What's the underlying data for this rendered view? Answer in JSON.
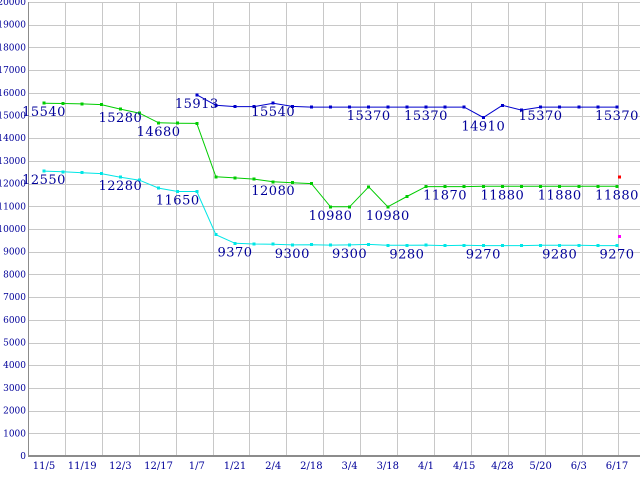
{
  "chart_data": {
    "type": "line",
    "title": "",
    "xlabel": "",
    "ylabel": "",
    "grid": true,
    "legend": "none",
    "y_axis": {
      "min": 0,
      "max": 20000,
      "step": 1000
    },
    "y_tick_labels": [
      "0",
      "1000",
      "2000",
      "3000",
      "4000",
      "5000",
      "6000",
      "7000",
      "8000",
      "9000",
      "10000",
      "11000",
      "12000",
      "13000",
      "14000",
      "15000",
      "16000",
      "17000",
      "18000",
      "19000",
      "20000"
    ],
    "x_tick_labels": [
      "11/5",
      "11/19",
      "12/3",
      "12/17",
      "1/7",
      "1/21",
      "2/4",
      "2/18",
      "3/4",
      "3/18",
      "4/1",
      "4/15",
      "4/28",
      "5/20",
      "6/3",
      "6/17"
    ],
    "points_per_tick": 2,
    "series": [
      {
        "name": "green-series",
        "color": "#00CC00",
        "start_index": 0,
        "values": [
          15540,
          15530,
          15510,
          15480,
          15280,
          15100,
          14680,
          14660,
          14650,
          12300,
          12250,
          12200,
          12080,
          12040,
          12000,
          10980,
          10980,
          11860,
          10980,
          11430,
          11870,
          11870,
          11870,
          11880,
          11880,
          11880,
          11880,
          11880,
          11880,
          11880,
          11880
        ],
        "labels": [
          {
            "i": 0,
            "v": "15540"
          },
          {
            "i": 4,
            "v": "15280"
          },
          {
            "i": 6,
            "v": "14680"
          },
          {
            "i": 12,
            "v": "12080"
          },
          {
            "i": 15,
            "v": "10980"
          },
          {
            "i": 18,
            "v": "10980"
          },
          {
            "i": 21,
            "v": "11870"
          },
          {
            "i": 24,
            "v": "11880"
          },
          {
            "i": 27,
            "v": "11880"
          },
          {
            "i": 30,
            "v": "11880"
          }
        ]
      },
      {
        "name": "blue-series",
        "color": "#0000CC",
        "start_index": 8,
        "values": [
          15913,
          15450,
          15390,
          15390,
          15540,
          15400,
          15370,
          15370,
          15370,
          15370,
          15370,
          15370,
          15370,
          15370,
          15370,
          14910,
          15450,
          15240,
          15370,
          15370,
          15370,
          15370,
          15370
        ],
        "labels": [
          {
            "i": 8,
            "v": "15913"
          },
          {
            "i": 12,
            "v": "15540"
          },
          {
            "i": 17,
            "v": "15370"
          },
          {
            "i": 20,
            "v": "15370"
          },
          {
            "i": 23,
            "v": "14910"
          },
          {
            "i": 26,
            "v": "15370"
          },
          {
            "i": 30,
            "v": "15370"
          }
        ]
      },
      {
        "name": "cyan-series",
        "color": "#00E6E6",
        "start_index": 0,
        "values": [
          12550,
          12520,
          12480,
          12440,
          12280,
          12150,
          11800,
          11650,
          11650,
          9750,
          9370,
          9340,
          9330,
          9300,
          9310,
          9290,
          9300,
          9320,
          9280,
          9280,
          9290,
          9270,
          9280,
          9270,
          9270,
          9270,
          9280,
          9280,
          9280,
          9270,
          9270
        ],
        "labels": [
          {
            "i": 0,
            "v": "12550"
          },
          {
            "i": 4,
            "v": "12280"
          },
          {
            "i": 7,
            "v": "11650"
          },
          {
            "i": 10,
            "v": "9370"
          },
          {
            "i": 13,
            "v": "9300"
          },
          {
            "i": 16,
            "v": "9300"
          },
          {
            "i": 19,
            "v": "9280"
          },
          {
            "i": 23,
            "v": "9270"
          },
          {
            "i": 27,
            "v": "9280"
          },
          {
            "i": 30,
            "v": "9270"
          }
        ]
      }
    ],
    "extra_points": [
      {
        "name": "red-dot",
        "color": "#FF0000",
        "index": 30,
        "value": 12300
      },
      {
        "name": "magenta-dot",
        "color": "#FF00FF",
        "index": 30,
        "value": 9660
      }
    ]
  },
  "colors": {
    "background": "#FFFFFF",
    "gridline": "#C8C8C8",
    "axis": "#8C8C8C",
    "label_text": "#000099",
    "blue_series": "#0000CC",
    "green_series": "#00CC00",
    "cyan_series": "#00E6E6",
    "red_dot": "#FF0000",
    "magenta_dot": "#FF00FF"
  }
}
